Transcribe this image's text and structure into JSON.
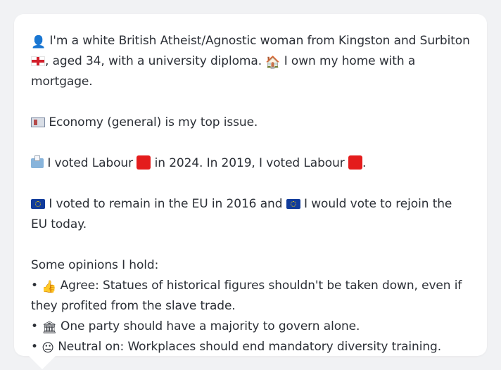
{
  "persona": {
    "line1_prefix_icon": "person-icon",
    "line1_text_a": "I'm a white British Atheist/Agnostic woman from Kingston and Surbiton",
    "line1_flag": "england-flag-icon",
    "line1_text_b": ", aged 34, with a university diploma.",
    "line1_house_icon": "house-icon",
    "line1_text_c": "I own my home with a mortgage.",
    "issue_icon": "newspaper-icon",
    "issue_text": "Economy (general) is my top issue.",
    "ballot_icon": "ballot-box-icon",
    "vote_text_a": "I voted Labour",
    "vote_text_b": "in 2024. In 2019, I voted Labour",
    "vote_text_c": ".",
    "eu_icon": "eu-flag-icon",
    "eu_text_a": "I voted to remain in the EU in 2016 and",
    "eu_text_b": "I would vote to rejoin the EU today.",
    "opinions_heading": "Some opinions I hold:",
    "opinions": [
      {
        "bullet": "•",
        "icon": "thumbs-up-icon",
        "text": "Agree: Statues of historical figures shouldn't be taken down, even if they profited from the slave trade."
      },
      {
        "bullet": "•",
        "icon": "classical-building-icon",
        "text": "One party should have a majority to govern alone."
      },
      {
        "bullet": "•",
        "icon": "neutral-face-icon",
        "text": "Neutral on: Workplaces should end mandatory diversity training."
      }
    ]
  },
  "colors": {
    "labour_red": "#e41c1c",
    "card_background": "#ffffff",
    "page_background": "#f1f2f4",
    "text": "#2b2f36"
  }
}
